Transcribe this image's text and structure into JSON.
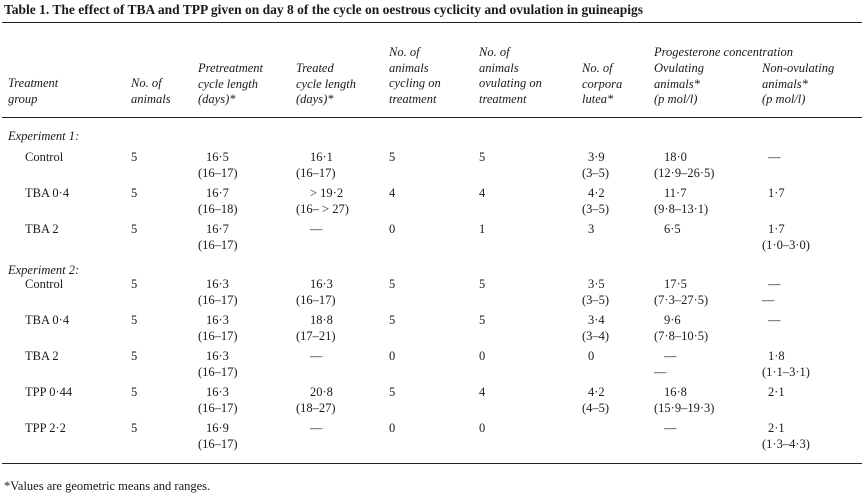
{
  "title": "Table 1. The effect of TBA and TPP given on day 8 of the cycle on oestrous cyclicity and ovulation in guineapigs",
  "headers": {
    "group": [
      "Treatment",
      "group"
    ],
    "animals": [
      "No. of",
      "animals"
    ],
    "pre": [
      "Pretreatment",
      "cycle length",
      "(days)*"
    ],
    "treated": [
      "Treated",
      "cycle length",
      "(days)*"
    ],
    "cycling": [
      "No. of",
      "animals",
      "cycling on",
      "treatment"
    ],
    "ovulating": [
      "No. of",
      "animals",
      "ovulating on",
      "treatment"
    ],
    "corpora": [
      "No. of",
      "corpora",
      "lutea*"
    ],
    "progesterone": "Progesterone concentration",
    "ovul_animals": [
      "Ovulating",
      "animals*",
      "(p mol/l)"
    ],
    "nonovul_animals": [
      "Non-ovulating",
      "animals*",
      "(p mol/l)"
    ]
  },
  "experiments": [
    {
      "label": "Experiment 1:",
      "rows": [
        {
          "group": "Control",
          "animals": "5",
          "pre": [
            "16·5",
            "(16–17)"
          ],
          "treated": [
            "16·1",
            "(16–17)"
          ],
          "cycling": "5",
          "ovulating": "5",
          "corpora": [
            "3·9",
            "(3–5)"
          ],
          "ovul": [
            "18·0",
            "(12·9–26·5)"
          ],
          "nonovul": [
            "—",
            ""
          ]
        },
        {
          "group": "TBA 0·4",
          "animals": "5",
          "pre": [
            "16·7",
            "(16–18)"
          ],
          "treated": [
            "> 19·2",
            "(16– > 27)"
          ],
          "cycling": "4",
          "ovulating": "4",
          "corpora": [
            "4·2",
            "(3–5)"
          ],
          "ovul": [
            "11·7",
            "(9·8–13·1)"
          ],
          "nonovul": [
            "1·7",
            ""
          ]
        },
        {
          "group": "TBA 2",
          "animals": "5",
          "pre": [
            "16·7",
            "(16–17)"
          ],
          "treated": [
            "—",
            ""
          ],
          "cycling": "0",
          "ovulating": "1",
          "corpora": [
            "3",
            ""
          ],
          "ovul": [
            "6·5",
            ""
          ],
          "nonovul": [
            "1·7",
            "(1·0–3·0)"
          ]
        }
      ]
    },
    {
      "label": "Experiment 2:",
      "rows": [
        {
          "group": "Control",
          "animals": "5",
          "pre": [
            "16·3",
            "(16–17)"
          ],
          "treated": [
            "16·3",
            "(16–17)"
          ],
          "cycling": "5",
          "ovulating": "5",
          "corpora": [
            "3·5",
            "(3–5)"
          ],
          "ovul": [
            "17·5",
            "(7·3–27·5)"
          ],
          "nonovul": [
            "—",
            "—"
          ]
        },
        {
          "group": "TBA 0·4",
          "animals": "5",
          "pre": [
            "16·3",
            "(16–17)"
          ],
          "treated": [
            "18·8",
            "(17–21)"
          ],
          "cycling": "5",
          "ovulating": "5",
          "corpora": [
            "3·4",
            "(3–4)"
          ],
          "ovul": [
            "9·6",
            "(7·8–10·5)"
          ],
          "nonovul": [
            "—",
            ""
          ]
        },
        {
          "group": "TBA 2",
          "animals": "5",
          "pre": [
            "16·3",
            "(16–17)"
          ],
          "treated": [
            "—",
            ""
          ],
          "cycling": "0",
          "ovulating": "0",
          "corpora": [
            "0",
            ""
          ],
          "ovul": [
            "—",
            "—"
          ],
          "nonovul": [
            "1·8",
            "(1·1–3·1)"
          ]
        },
        {
          "group": "TPP 0·44",
          "animals": "5",
          "pre": [
            "16·3",
            "(16–17)"
          ],
          "treated": [
            "20·8",
            "(18–27)"
          ],
          "cycling": "5",
          "ovulating": "4",
          "corpora": [
            "4·2",
            "(4–5)"
          ],
          "ovul": [
            "16·8",
            "(15·9–19·3)"
          ],
          "nonovul": [
            "2·1",
            ""
          ]
        },
        {
          "group": "TPP 2·2",
          "animals": "5",
          "pre": [
            "16·9",
            "(16–17)"
          ],
          "treated": [
            "—",
            ""
          ],
          "cycling": "0",
          "ovulating": "0",
          "corpora": [
            "",
            ""
          ],
          "ovul": [
            "—",
            ""
          ],
          "nonovul": [
            "2·1",
            "(1·3–4·3)"
          ]
        }
      ]
    }
  ],
  "footnote": "*Values are geometric means and ranges."
}
